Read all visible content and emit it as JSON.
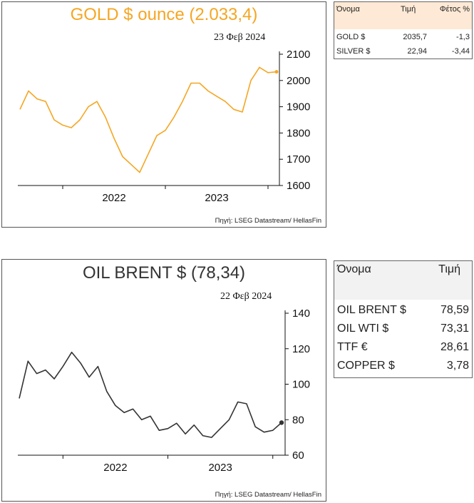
{
  "gold_chart": {
    "title": "GOLD $ ounce (2.033,4)",
    "date": "23 Φεβ 2024",
    "source": "Πηγή: LSEG Datastream/ HellasFin",
    "color": "#f5a623",
    "x_labels": [
      "2022",
      "2023"
    ],
    "y_ticks": [
      "1600",
      "1700",
      "1800",
      "1900",
      "2000",
      "2100"
    ]
  },
  "gold_table": {
    "headers": [
      "Όνομα",
      "Τιμή",
      "Φέτος %"
    ],
    "rows": [
      {
        "name": "GOLD $",
        "price": "2035,7",
        "ytd": "-1,3"
      },
      {
        "name": "SILVER $",
        "price": "22,94",
        "ytd": "-3,44"
      }
    ]
  },
  "oil_chart": {
    "title": "OIL BRENT $ (78,34)",
    "date": "22 Φεβ 2024",
    "source": "Πηγή: LSEG Datastream/ HellasFin",
    "color": "#333333",
    "x_labels": [
      "2022",
      "2023"
    ],
    "y_ticks": [
      "60",
      "80",
      "100",
      "120",
      "140"
    ]
  },
  "oil_table": {
    "headers": [
      "Όνομα",
      "Τιμή"
    ],
    "rows": [
      {
        "name": "OIL BRENT $",
        "price": "78,59"
      },
      {
        "name": "OIL WTI $",
        "price": "73,31"
      },
      {
        "name": "TTF €",
        "price": "28,61"
      },
      {
        "name": "COPPER $",
        "price": "3,78"
      }
    ]
  },
  "chart_data": [
    {
      "type": "line",
      "title": "GOLD $ ounce (2.033,4)",
      "xlabel": "",
      "ylabel": "",
      "x_tick_labels": [
        "2022",
        "2023"
      ],
      "ylim": [
        1600,
        2100
      ],
      "y_ticks": [
        1600,
        1700,
        1800,
        1900,
        2000,
        2100
      ],
      "grid": false,
      "x": [
        "2021-08",
        "2021-09",
        "2021-10",
        "2021-11",
        "2021-12",
        "2022-01",
        "2022-02",
        "2022-03",
        "2022-04",
        "2022-05",
        "2022-06",
        "2022-07",
        "2022-08",
        "2022-09",
        "2022-10",
        "2022-11",
        "2022-12",
        "2023-01",
        "2023-02",
        "2023-03",
        "2023-04",
        "2023-05",
        "2023-06",
        "2023-07",
        "2023-08",
        "2023-09",
        "2023-10",
        "2023-11",
        "2023-12",
        "2024-01",
        "2024-02"
      ],
      "series": [
        {
          "values": [
            1890,
            1960,
            1930,
            1920,
            1850,
            1830,
            1820,
            1850,
            1900,
            1920,
            1860,
            1780,
            1710,
            1680,
            1650,
            1720,
            1790,
            1810,
            1860,
            1920,
            1990,
            1990,
            1960,
            1940,
            1920,
            1890,
            1880,
            2000,
            2050,
            2030,
            2033
          ]
        }
      ]
    },
    {
      "type": "line",
      "title": "OIL BRENT $ (78,34)",
      "xlabel": "",
      "ylabel": "",
      "x_tick_labels": [
        "2022",
        "2023"
      ],
      "ylim": [
        60,
        140
      ],
      "y_ticks": [
        60,
        80,
        100,
        120,
        140
      ],
      "grid": false,
      "x": [
        "2021-08",
        "2021-09",
        "2021-10",
        "2021-11",
        "2021-12",
        "2022-01",
        "2022-02",
        "2022-03",
        "2022-04",
        "2022-05",
        "2022-06",
        "2022-07",
        "2022-08",
        "2022-09",
        "2022-10",
        "2022-11",
        "2022-12",
        "2023-01",
        "2023-02",
        "2023-03",
        "2023-04",
        "2023-05",
        "2023-06",
        "2023-07",
        "2023-08",
        "2023-09",
        "2023-10",
        "2023-11",
        "2023-12",
        "2024-01",
        "2024-02"
      ],
      "series": [
        {
          "values": [
            92,
            113,
            106,
            108,
            103,
            110,
            118,
            112,
            104,
            110,
            96,
            88,
            84,
            86,
            80,
            82,
            74,
            75,
            78,
            72,
            77,
            71,
            70,
            75,
            80,
            90,
            89,
            76,
            73,
            74,
            78.34
          ]
        }
      ]
    }
  ]
}
